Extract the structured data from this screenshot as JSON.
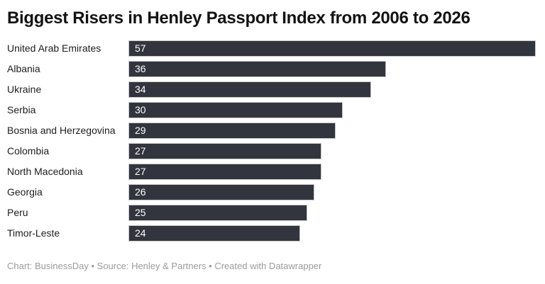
{
  "chart_data": {
    "type": "bar",
    "orientation": "horizontal",
    "title": "Biggest Risers in Henley Passport Index from 2006 to 2026",
    "xlabel": "",
    "ylabel": "",
    "categories": [
      "United Arab Emirates",
      "Albania",
      "Ukraine",
      "Serbia",
      "Bosnia and Herzegovina",
      "Colombia",
      "North Macedonia",
      "Georgia",
      "Peru",
      "Timor-Leste"
    ],
    "values": [
      57,
      36,
      34,
      30,
      29,
      27,
      27,
      26,
      25,
      24
    ],
    "value_labels": [
      "57",
      "36",
      "34",
      "30",
      "29",
      "27",
      "27",
      "26",
      "25",
      "24"
    ],
    "axis_min": 0,
    "axis_max": 57,
    "grid": false,
    "legend_position": "none",
    "bar_color": "#32353d",
    "bar_border_color": "#c9c9c9",
    "value_label_color": "#ffffff",
    "category_label_color": "#1d1d1d",
    "title_color": "#131313"
  },
  "footer": {
    "text": "Chart: BusinessDay • Source: Henley & Partners • Created with Datawrapper",
    "color": "#9b9b9b"
  }
}
